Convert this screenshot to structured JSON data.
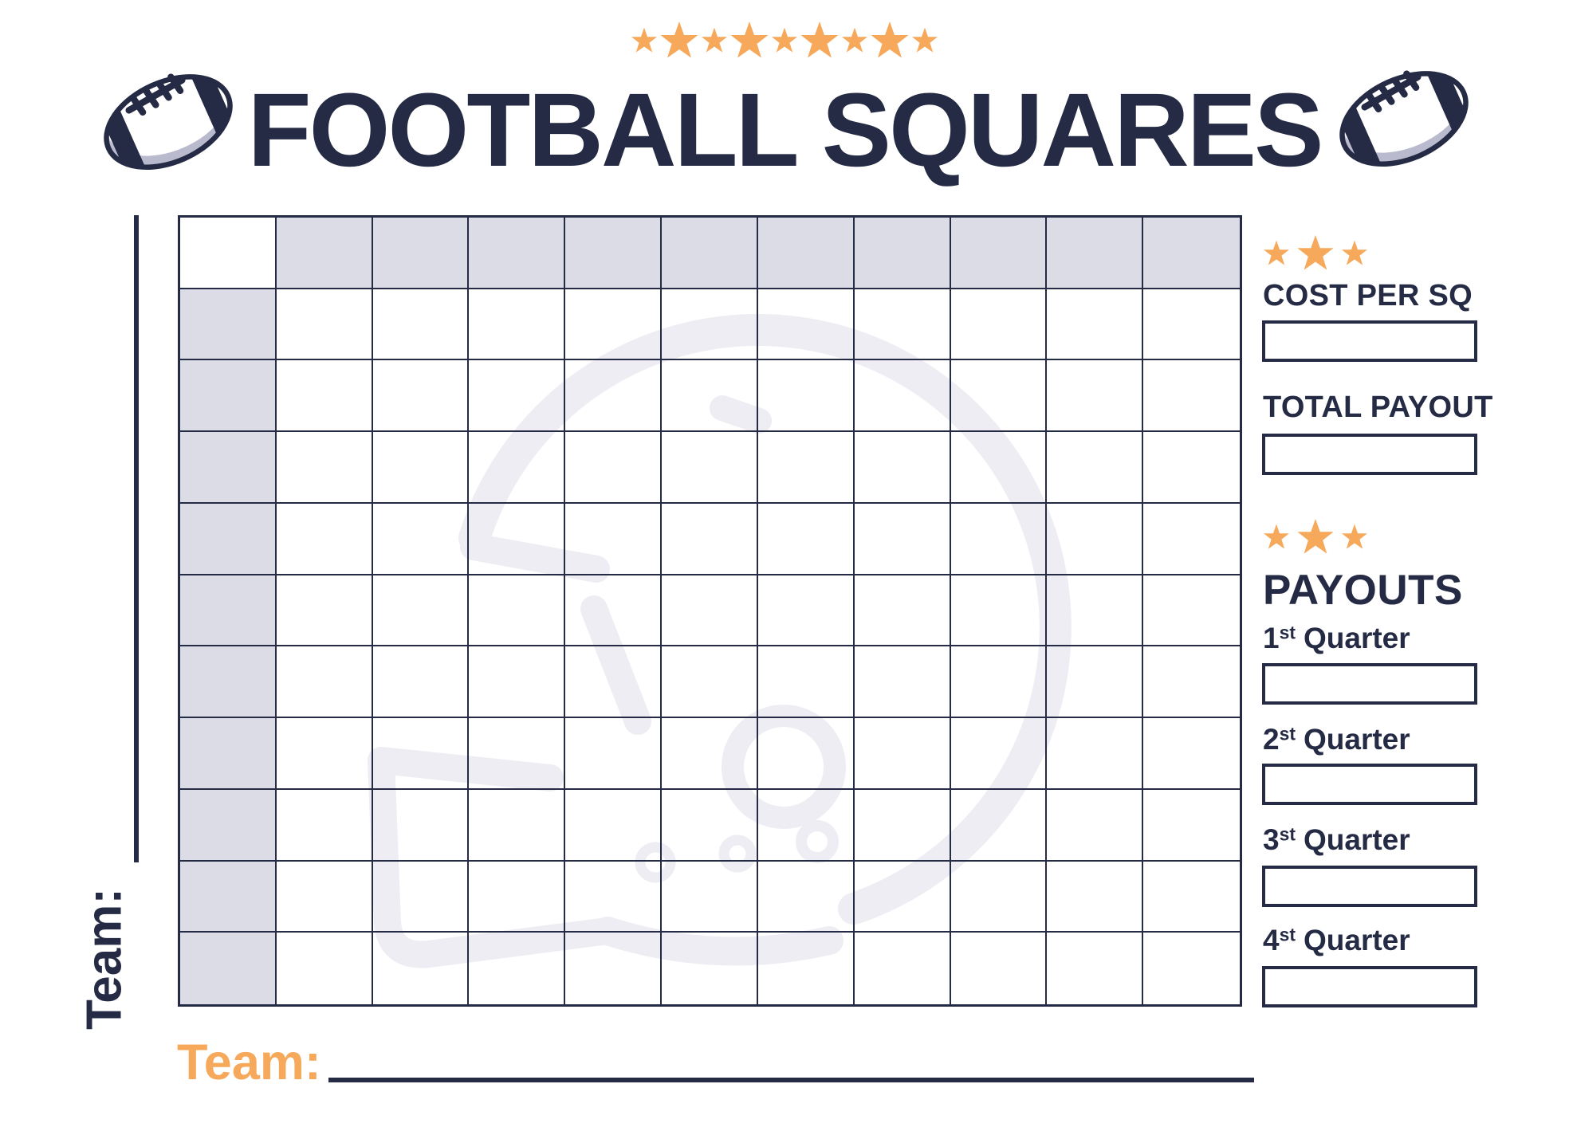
{
  "header": {
    "title": "FOOTBALL SQUARES",
    "star_pattern": [
      "small",
      "big",
      "small",
      "big",
      "small",
      "big",
      "small",
      "big",
      "small"
    ]
  },
  "left_axis": {
    "team_label": "Team:"
  },
  "bottom_axis": {
    "team_label": "Team:"
  },
  "grid": {
    "rows": 11,
    "cols": 11,
    "header_rows": 1,
    "header_cols": 1
  },
  "sidebar": {
    "star_pattern": [
      "small",
      "big",
      "small"
    ],
    "cost_per_sq_label": "COST PER SQ",
    "cost_per_sq_value": "",
    "total_payout_label": "TOTAL PAYOUT",
    "total_payout_value": "",
    "payouts_title": "PAYOUTS",
    "quarters": [
      {
        "num": "1",
        "sup": "st",
        "word": "Quarter",
        "value": ""
      },
      {
        "num": "2",
        "sup": "st",
        "word": "Quarter",
        "value": ""
      },
      {
        "num": "3",
        "sup": "st",
        "word": "Quarter",
        "value": ""
      },
      {
        "num": "4",
        "sup": "st",
        "word": "Quarter",
        "value": ""
      }
    ]
  },
  "colors": {
    "navy": "#252b44",
    "orange": "#f6a95b",
    "shade": "#dcdce6",
    "watermark": "#ededf3",
    "football-gray": "#b9bacd"
  }
}
